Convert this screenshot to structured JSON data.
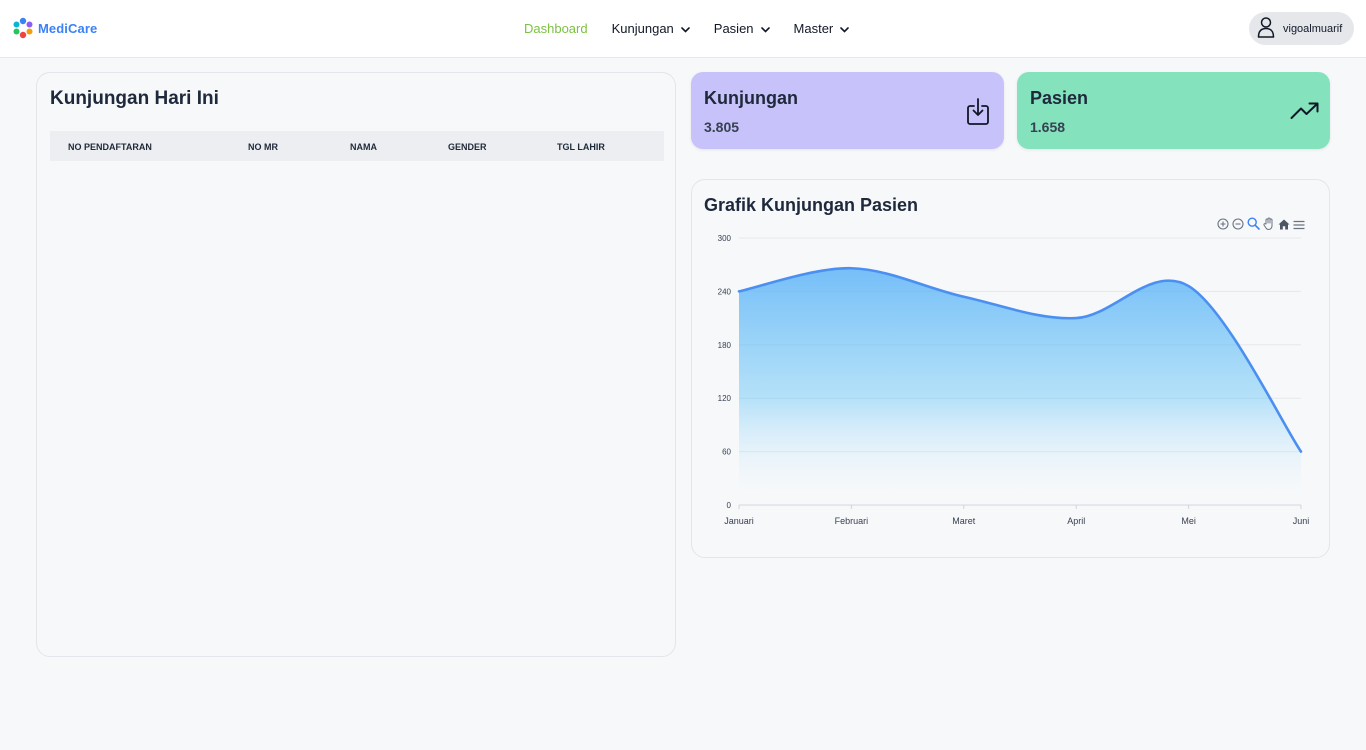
{
  "brand": {
    "name": "MediCare"
  },
  "nav": {
    "items": [
      {
        "label": "Dashboard",
        "active": true,
        "has_dropdown": false
      },
      {
        "label": "Kunjungan",
        "active": false,
        "has_dropdown": true
      },
      {
        "label": "Pasien",
        "active": false,
        "has_dropdown": true
      },
      {
        "label": "Master",
        "active": false,
        "has_dropdown": true
      }
    ],
    "active_color": "#7cc242"
  },
  "user": {
    "name": "vigoalmuarif",
    "icon": "user-icon"
  },
  "visits_today": {
    "title": "Kunjungan Hari Ini",
    "columns": [
      "NO PENDAFTARAN",
      "NO MR",
      "NAMA",
      "GENDER",
      "TGL LAHIR"
    ],
    "rows": []
  },
  "stats": {
    "visits": {
      "label": "Kunjungan",
      "value": "3.805",
      "icon": "download-icon",
      "color": "#c7c2fa"
    },
    "patients": {
      "label": "Pasien",
      "value": "1.658",
      "icon": "trending-up-icon",
      "color": "#84e2bd"
    }
  },
  "chart_panel": {
    "title": "Grafik Kunjungan Pasien",
    "toolbar": [
      "zoom-in-icon",
      "zoom-out-icon",
      "search-zoom-icon",
      "pan-hand-icon",
      "home-icon",
      "menu-icon"
    ]
  },
  "chart_data": {
    "type": "area",
    "categories": [
      "Januari",
      "Februari",
      "Maret",
      "April",
      "Mei",
      "Juni"
    ],
    "series": [
      {
        "values": [
          240,
          266,
          234,
          210,
          246,
          60
        ]
      }
    ],
    "ylim": [
      0,
      300
    ],
    "yticks": [
      0,
      60,
      120,
      180,
      240,
      300
    ],
    "grid": true,
    "curve": "smooth",
    "line_color": "#4b8ff0",
    "fill_color": "#5fb4f7"
  }
}
